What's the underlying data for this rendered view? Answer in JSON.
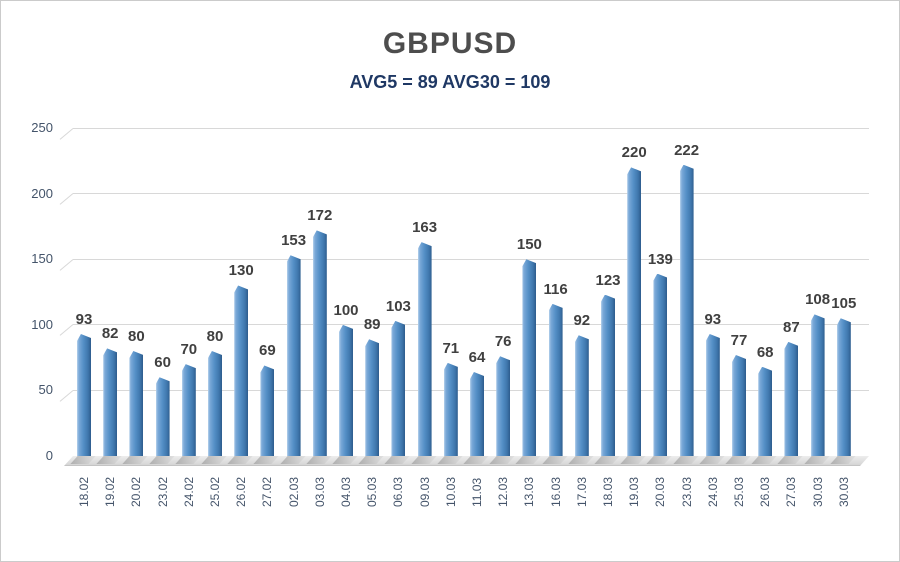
{
  "title": "GBPUSD",
  "subtitle": "AVG5 = 89 AVG30 = 109",
  "chart_data": {
    "type": "bar",
    "title": "GBPUSD",
    "subtitle": "AVG5 = 89 AVG30 = 109",
    "categories": [
      "18.02",
      "19.02",
      "20.02",
      "23.02",
      "24.02",
      "25.02",
      "26.02",
      "27.02",
      "02.03",
      "03.03",
      "04.03",
      "05.03",
      "06.03",
      "09.03",
      "10.03",
      "11.03",
      "12.03",
      "13.03",
      "16.03",
      "17.03",
      "18.03",
      "19.03",
      "20.03",
      "23.03",
      "24.03",
      "25.03",
      "26.03",
      "27.03",
      "30.03",
      "30.03"
    ],
    "values": [
      93,
      82,
      80,
      60,
      70,
      80,
      130,
      69,
      153,
      172,
      100,
      89,
      103,
      163,
      71,
      64,
      76,
      150,
      116,
      92,
      123,
      220,
      139,
      222,
      93,
      77,
      68,
      87,
      108,
      105
    ],
    "avg5": 89,
    "avg30": 109,
    "xlabel": "",
    "ylabel": "",
    "ylim": [
      0,
      250
    ],
    "yticks": [
      0,
      50,
      100,
      150,
      200,
      250
    ],
    "grid": true,
    "legend": false,
    "colors": {
      "bar_gradient": [
        "#b5d1ec",
        "#7aa9d8",
        "#5590c7",
        "#3f77ad",
        "#2d5c8d"
      ],
      "title": "#4d4d4d",
      "subtitle": "#1f3864",
      "axis_labels": "#44546a",
      "value_labels": "#404040",
      "gridline": "#d8d8d8"
    }
  }
}
